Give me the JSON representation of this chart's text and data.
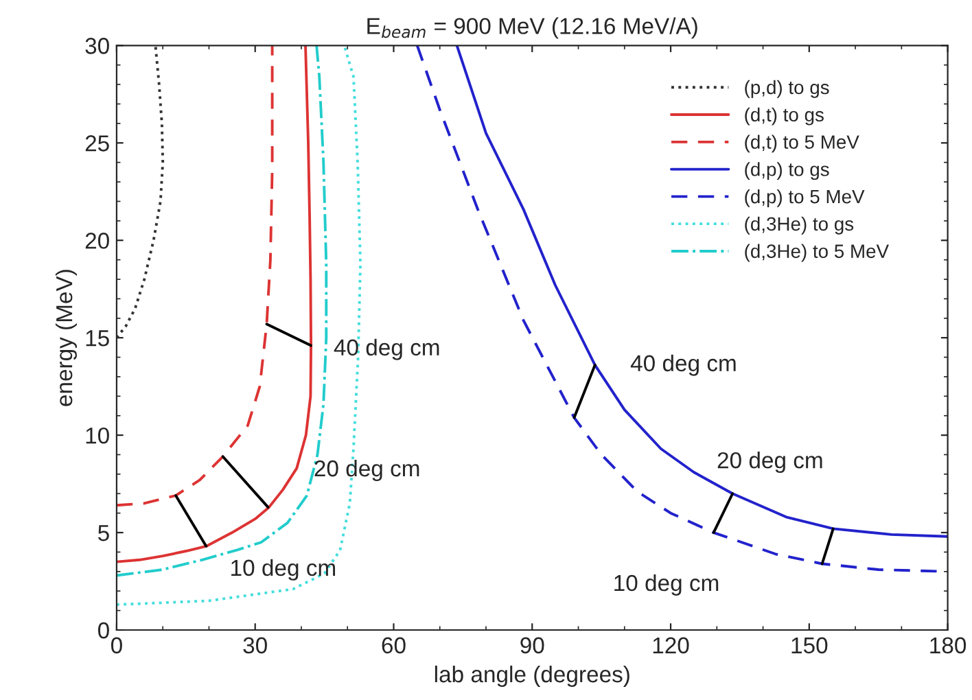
{
  "chart_data": {
    "type": "line",
    "title": "E$_{beam}$ = 900 MeV (12.16 MeV/A)",
    "xlabel": "lab angle (degrees)",
    "ylabel": "energy (MeV)",
    "xlim": [
      0,
      180
    ],
    "ylim": [
      0,
      30
    ],
    "xticks": [
      0,
      30,
      60,
      90,
      120,
      150,
      180
    ],
    "yticks": [
      0,
      5,
      10,
      15,
      20,
      25,
      30
    ],
    "grid": false,
    "legend": "top right",
    "marker": "none",
    "series": [
      {
        "name": "(p,d) to gs",
        "color": "#333333",
        "line_style": "dotted",
        "x": [
          0,
          2,
          4,
          6,
          8,
          9.5,
          10,
          9.8,
          9.2,
          8.4
        ],
        "values": [
          15,
          15.6,
          16.5,
          18,
          20,
          22,
          24,
          26,
          28,
          30
        ]
      },
      {
        "name": "(d,t) to gs",
        "color": "#dd3333",
        "line_style": "solid",
        "x": [
          0,
          5,
          10,
          15,
          19.4,
          25,
          30,
          33,
          36,
          39,
          41,
          42,
          42.1,
          42,
          41.8,
          41.5,
          40.9
        ],
        "values": [
          3.5,
          3.6,
          3.8,
          4.05,
          4.3,
          5,
          5.7,
          6.3,
          7.2,
          8.3,
          10,
          12,
          14.6,
          18,
          21.2,
          25,
          30
        ]
      },
      {
        "name": "(d,t) to 5 MeV",
        "color": "#dd3333",
        "line_style": "dashed",
        "x": [
          0,
          6,
          12.8,
          18,
          23,
          28.4,
          31,
          32.5,
          33.3,
          33.7,
          33.7
        ],
        "values": [
          6.4,
          6.5,
          6.9,
          7.7,
          8.9,
          10.5,
          12.5,
          15.7,
          19,
          23.6,
          30
        ]
      },
      {
        "name": "(d,p) to gs",
        "color": "#2222cc",
        "line_style": "solid",
        "x": [
          73.7,
          80,
          88.1,
          95,
          103.6,
          110,
          117.9,
          125,
          133.4,
          145,
          155.2,
          167.8,
          180
        ],
        "values": [
          30,
          25.5,
          21.6,
          17.7,
          13.6,
          11.3,
          9.3,
          8.1,
          7.0,
          5.8,
          5.2,
          4.9,
          4.8
        ]
      },
      {
        "name": "(d,p) to 5 MeV",
        "color": "#2222cc",
        "line_style": "dashed",
        "x": [
          65.1,
          70,
          78.2,
          88.1,
          99.1,
          105,
          112.8,
          120,
          129.3,
          142.7,
          152.8,
          165,
          180
        ],
        "values": [
          30,
          26.7,
          21.6,
          15.9,
          10.9,
          9,
          7.1,
          6,
          5.0,
          3.9,
          3.4,
          3.1,
          3.0
        ]
      },
      {
        "name": "(d,3He) to gs",
        "color": "#44dddd",
        "line_style": "dotted",
        "x": [
          0,
          20,
          38.2,
          45,
          48.4,
          50.5,
          51.3,
          52.3,
          52.8,
          52.2,
          51.3,
          49.3
        ],
        "values": [
          1.3,
          1.5,
          2.1,
          2.9,
          4.1,
          6.5,
          9.3,
          14,
          18.8,
          24,
          28.4,
          30
        ]
      },
      {
        "name": "(d,3He) to 5 MeV",
        "color": "#22cccc",
        "line_style": "dashdot",
        "x": [
          0,
          10,
          18.5,
          26,
          31.3,
          37,
          41.2,
          43.5,
          44.8,
          45.4,
          45.4,
          44.8,
          43.9,
          43.3
        ],
        "values": [
          2.8,
          3.1,
          3.6,
          4.1,
          4.5,
          5.5,
          6.9,
          9,
          11.6,
          15,
          18.8,
          24,
          28.4,
          30
        ]
      },
      {
        "color": "#000000",
        "line_style": "solid",
        "x": [
          12.8,
          19.4
        ],
        "values": [
          6.9,
          4.3
        ]
      },
      {
        "color": "#000000",
        "line_style": "solid",
        "x": [
          23,
          32.8
        ],
        "values": [
          8.9,
          6.3
        ]
      },
      {
        "color": "#000000",
        "line_style": "solid",
        "x": [
          32.5,
          42.1
        ],
        "values": [
          15.7,
          14.6
        ]
      },
      {
        "color": "#000000",
        "line_style": "solid",
        "x": [
          99.1,
          103.6
        ],
        "values": [
          10.9,
          13.6
        ]
      },
      {
        "color": "#000000",
        "line_style": "solid",
        "x": [
          129.3,
          133.4
        ],
        "values": [
          5.0,
          7.0
        ]
      },
      {
        "color": "#000000",
        "line_style": "solid",
        "x": [
          152.8,
          155.2
        ],
        "values": [
          3.4,
          5.2
        ]
      }
    ],
    "annotations": [
      "40 deg cm",
      "20 deg cm",
      "10 deg cm",
      "40 deg cm",
      "20 deg cm",
      "10 deg cm"
    ]
  }
}
